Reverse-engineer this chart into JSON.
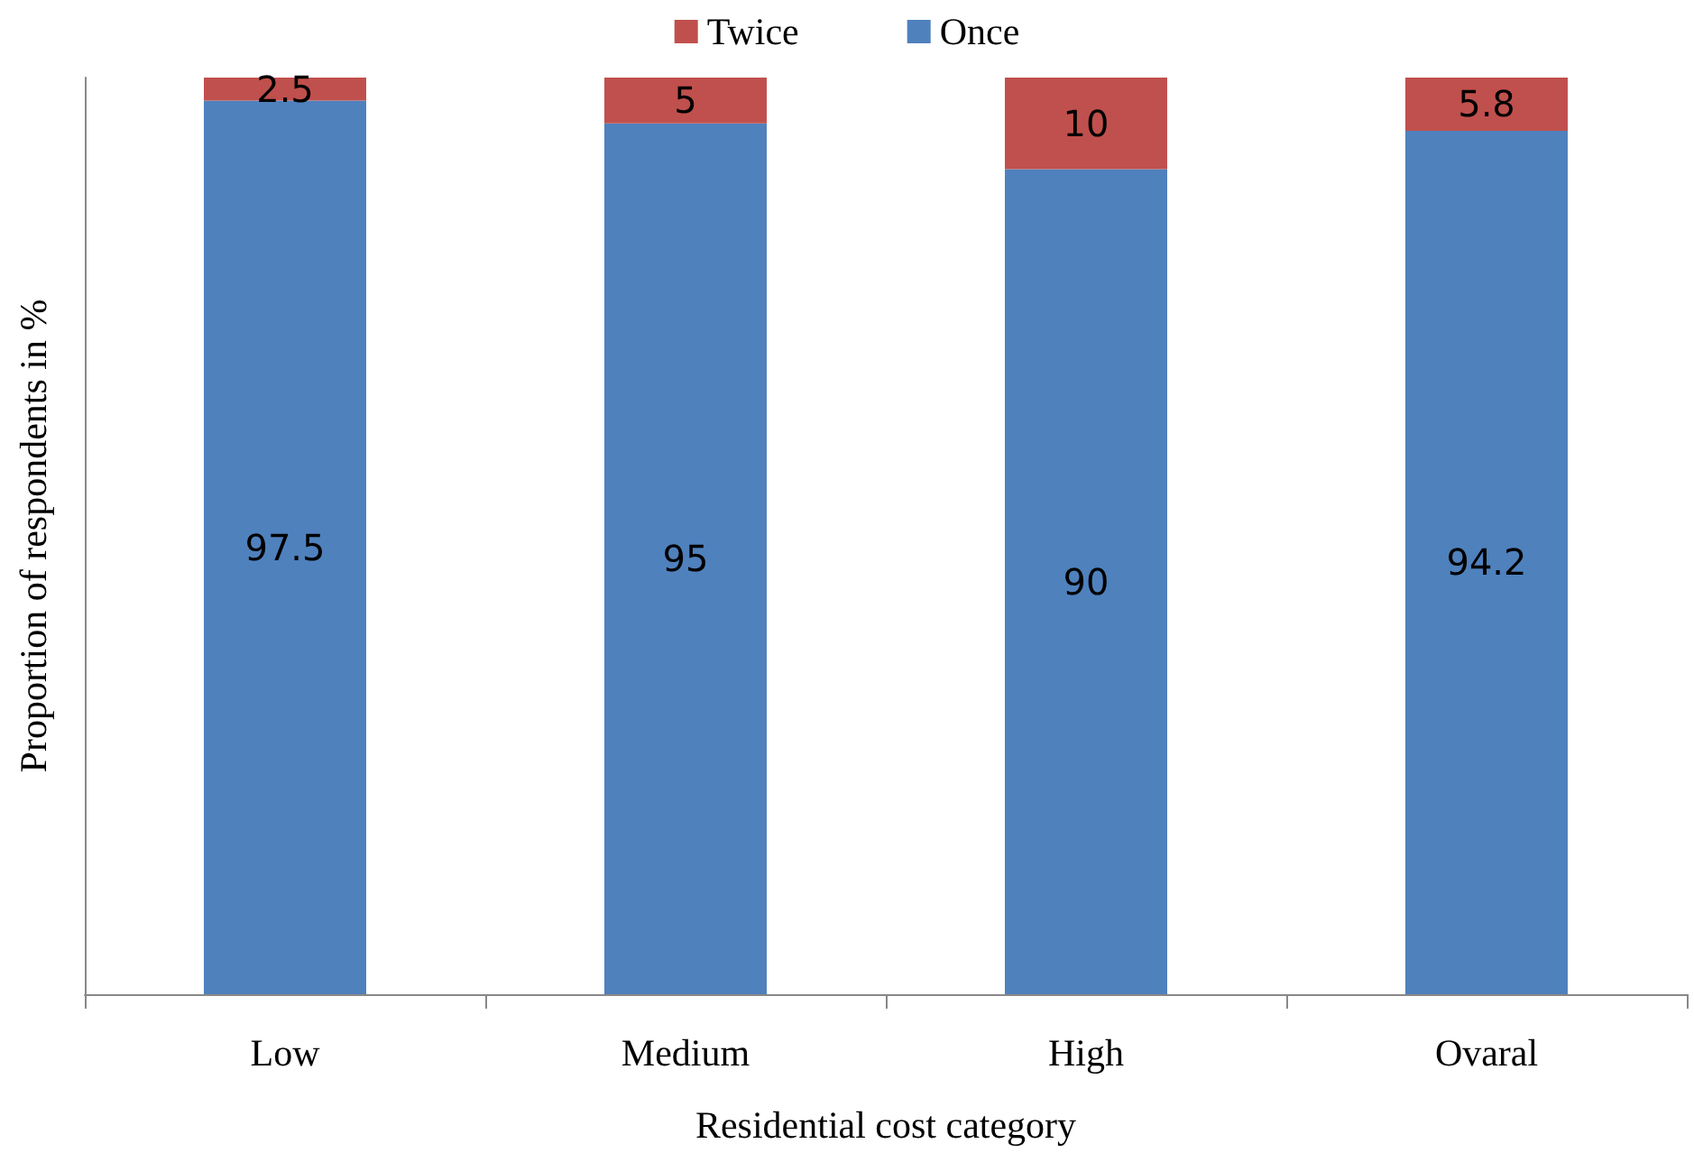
{
  "chart_data": {
    "type": "bar",
    "stacked": true,
    "xlabel": "Residential cost category",
    "ylabel": "Proportion of respondents in %",
    "categories": [
      "Low",
      "Medium",
      "High",
      "Ovaral"
    ],
    "series": [
      {
        "name": "Once",
        "color": "#4f81bd",
        "values": [
          97.5,
          95,
          90,
          94.2
        ]
      },
      {
        "name": "Twice",
        "color": "#c0504d",
        "values": [
          2.5,
          5,
          10,
          5.8
        ]
      }
    ],
    "tick_labels": "x",
    "data_labels": true,
    "legend": "top",
    "grid": false
  }
}
